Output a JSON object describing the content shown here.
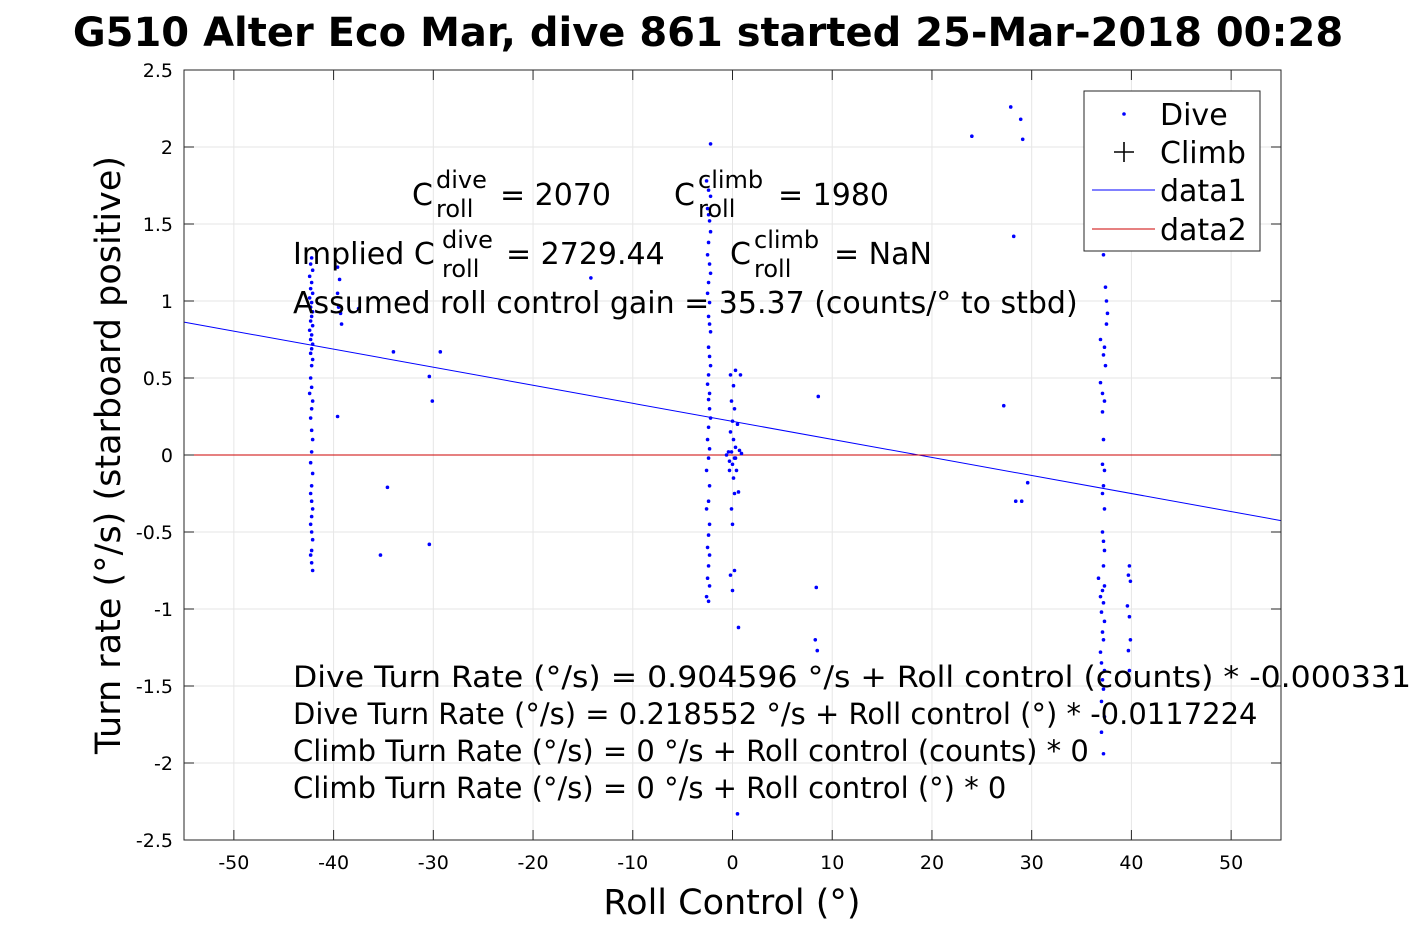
{
  "chart_data": {
    "type": "scatter",
    "title": "G510 Alter Eco Mar, dive 861 started 25-Mar-2018 00:28",
    "xlabel": "Roll Control (°)",
    "ylabel": "Turn rate (°/s) (starboard positive)",
    "xlim": [
      -55,
      55
    ],
    "ylim": [
      -2.5,
      2.5
    ],
    "x_ticks": [
      -50,
      -40,
      -30,
      -20,
      -10,
      0,
      10,
      20,
      30,
      40,
      50
    ],
    "x_tick_labels": [
      "-50",
      "-40",
      "-30",
      "-20",
      "-10",
      "0",
      "10",
      "20",
      "30",
      "40",
      "50"
    ],
    "y_ticks": [
      2.5,
      2,
      1.5,
      1,
      0.5,
      0,
      -0.5,
      -1,
      -1.5,
      -2,
      -2.5
    ],
    "y_tick_labels": [
      "2.5",
      "2",
      "1.5",
      "1",
      "0.5",
      "0",
      "-0.5",
      "-1",
      "-1.5",
      "-2",
      "-2.5"
    ],
    "grid": true,
    "legend_position": "top-right",
    "legend": [
      {
        "label": "Dive",
        "marker": "dot",
        "color": "#0000ff"
      },
      {
        "label": "Climb",
        "marker": "plus",
        "color": "#000000"
      },
      {
        "label": "data1",
        "marker": "line",
        "color": "#0000ff"
      },
      {
        "label": "data2",
        "marker": "line",
        "color": "#ff0000"
      }
    ],
    "series": [
      {
        "name": "Dive",
        "color": "#0000ff",
        "points": [
          [
            -42.2,
            1.28
          ],
          [
            -42.3,
            1.24
          ],
          [
            -42.1,
            1.2
          ],
          [
            -42.4,
            1.16
          ],
          [
            -42.2,
            1.12
          ],
          [
            -42.3,
            1.08
          ],
          [
            -42.1,
            1.05
          ],
          [
            -42.4,
            1.02
          ],
          [
            -42.2,
            0.99
          ],
          [
            -42.3,
            0.96
          ],
          [
            -42.1,
            0.93
          ],
          [
            -42.2,
            0.9
          ],
          [
            -42.3,
            0.87
          ],
          [
            -42.1,
            0.84
          ],
          [
            -42.4,
            0.81
          ],
          [
            -42.2,
            0.78
          ],
          [
            -42.3,
            0.75
          ],
          [
            -42.1,
            0.72
          ],
          [
            -42.2,
            0.69
          ],
          [
            -42.3,
            0.66
          ],
          [
            -42.1,
            0.62
          ],
          [
            -42.2,
            0.58
          ],
          [
            -42.3,
            0.5
          ],
          [
            -42.2,
            0.44
          ],
          [
            -42.4,
            0.4
          ],
          [
            -42.1,
            0.35
          ],
          [
            -42.2,
            0.3
          ],
          [
            -42.3,
            0.24
          ],
          [
            -42.2,
            0.16
          ],
          [
            -42.1,
            0.1
          ],
          [
            -42.2,
            0.02
          ],
          [
            -42.3,
            -0.05
          ],
          [
            -42.1,
            -0.12
          ],
          [
            -42.2,
            -0.2
          ],
          [
            -42.3,
            -0.25
          ],
          [
            -42.2,
            -0.3
          ],
          [
            -42.1,
            -0.35
          ],
          [
            -42.2,
            -0.4
          ],
          [
            -42.3,
            -0.45
          ],
          [
            -42.2,
            -0.5
          ],
          [
            -42.1,
            -0.55
          ],
          [
            -42.2,
            -0.62
          ],
          [
            -42.3,
            -0.65
          ],
          [
            -42.2,
            -0.7
          ],
          [
            -42.1,
            -0.75
          ],
          [
            -39.6,
            1.22
          ],
          [
            -39.4,
            1.14
          ],
          [
            -39.6,
            1.05
          ],
          [
            -39.5,
            0.96
          ],
          [
            -39.3,
            0.92
          ],
          [
            -39.2,
            0.85
          ],
          [
            -39.6,
            0.25
          ],
          [
            -37.5,
            0.95
          ],
          [
            -34.6,
            -0.21
          ],
          [
            -34,
            0.67
          ],
          [
            -35.3,
            -0.65
          ],
          [
            -30.4,
            0.51
          ],
          [
            -30.1,
            0.35
          ],
          [
            -30.4,
            -0.58
          ],
          [
            -29.3,
            0.67
          ],
          [
            -14.2,
            1.15
          ],
          [
            -2.2,
            2.02
          ],
          [
            -2.6,
            1.78
          ],
          [
            -2.4,
            1.72
          ],
          [
            -2.2,
            1.68
          ],
          [
            -2.5,
            1.6
          ],
          [
            -2.4,
            1.56
          ],
          [
            -2.3,
            1.52
          ],
          [
            -2.2,
            1.45
          ],
          [
            -2.4,
            1.38
          ],
          [
            -2.5,
            1.3
          ],
          [
            -2.3,
            1.24
          ],
          [
            -2.2,
            1.18
          ],
          [
            -2.4,
            1.12
          ],
          [
            -2.5,
            1.05
          ],
          [
            -2.3,
            0.99
          ],
          [
            -2.4,
            0.9
          ],
          [
            -2.3,
            0.85
          ],
          [
            -2.2,
            0.8
          ],
          [
            -2.4,
            0.7
          ],
          [
            -2.3,
            0.64
          ],
          [
            -2.2,
            0.58
          ],
          [
            -2.4,
            0.52
          ],
          [
            -2.5,
            0.46
          ],
          [
            -2.3,
            0.4
          ],
          [
            -2.4,
            0.36
          ],
          [
            -2.3,
            0.3
          ],
          [
            -2.2,
            0.24
          ],
          [
            -2.4,
            0.18
          ],
          [
            -2.5,
            0.1
          ],
          [
            -2.3,
            0.04
          ],
          [
            -2.4,
            -0.02
          ],
          [
            -2.6,
            -0.1
          ],
          [
            -2.3,
            -0.2
          ],
          [
            -2.4,
            -0.3
          ],
          [
            -2.6,
            -0.35
          ],
          [
            -2.3,
            -0.45
          ],
          [
            -2.4,
            -0.52
          ],
          [
            -2.5,
            -0.6
          ],
          [
            -2.3,
            -0.65
          ],
          [
            -2.4,
            -0.72
          ],
          [
            -2.5,
            -0.8
          ],
          [
            -2.3,
            -0.85
          ],
          [
            -2.6,
            -0.92
          ],
          [
            -2.4,
            -0.95
          ],
          [
            -0.2,
            0.52
          ],
          [
            0.3,
            0.55
          ],
          [
            0.1,
            0.45
          ],
          [
            -0.1,
            0.35
          ],
          [
            0.2,
            0.3
          ],
          [
            0,
            0.22
          ],
          [
            -0.2,
            0.15
          ],
          [
            0.1,
            0.1
          ],
          [
            0.3,
            0.05
          ],
          [
            -0.1,
            0.02
          ],
          [
            0.2,
            -0.02
          ],
          [
            0,
            -0.06
          ],
          [
            -0.3,
            -0.1
          ],
          [
            0.1,
            -0.15
          ],
          [
            0.2,
            -0.25
          ],
          [
            -0.1,
            -0.35
          ],
          [
            0,
            -0.45
          ],
          [
            0.2,
            -0.75
          ],
          [
            -0.2,
            -0.78
          ],
          [
            0,
            -0.88
          ],
          [
            0.6,
            -1.12
          ],
          [
            0.5,
            -2.33
          ],
          [
            0.8,
            0.52
          ],
          [
            0.6,
            -0.24
          ],
          [
            0.4,
            -0.1
          ],
          [
            0.5,
            0.2
          ],
          [
            0.7,
            0.03
          ],
          [
            0.3,
            -0.02
          ],
          [
            -0.4,
            0.02
          ],
          [
            -0.6,
            0
          ],
          [
            0.9,
            0.01
          ],
          [
            -0.3,
            -0.04
          ],
          [
            8.6,
            0.38
          ],
          [
            8.4,
            -0.86
          ],
          [
            8.3,
            -1.2
          ],
          [
            8.5,
            -1.27
          ],
          [
            24,
            2.07
          ],
          [
            27.2,
            0.32
          ],
          [
            27.9,
            2.26
          ],
          [
            28.2,
            1.42
          ],
          [
            28.4,
            -0.3
          ],
          [
            28.9,
            2.18
          ],
          [
            29.1,
            2.05
          ],
          [
            29,
            -0.3
          ],
          [
            29.6,
            -0.18
          ],
          [
            37.1,
            1.35
          ],
          [
            37.2,
            1.3
          ],
          [
            37.4,
            1.09
          ],
          [
            37.5,
            1.0
          ],
          [
            37.6,
            0.92
          ],
          [
            37.5,
            0.85
          ],
          [
            36.9,
            0.75
          ],
          [
            37.3,
            0.7
          ],
          [
            37.2,
            0.65
          ],
          [
            37.4,
            0.58
          ],
          [
            36.9,
            0.47
          ],
          [
            37.1,
            0.4
          ],
          [
            37.3,
            0.35
          ],
          [
            37.1,
            0.28
          ],
          [
            37.2,
            0.1
          ],
          [
            37.1,
            -0.06
          ],
          [
            37.3,
            -0.1
          ],
          [
            37.2,
            -0.2
          ],
          [
            37.1,
            -0.25
          ],
          [
            37.3,
            -0.35
          ],
          [
            37.1,
            -0.5
          ],
          [
            37.2,
            -0.56
          ],
          [
            37.3,
            -0.62
          ],
          [
            37.2,
            -0.72
          ],
          [
            36.7,
            -0.8
          ],
          [
            37.3,
            -0.85
          ],
          [
            37.1,
            -0.88
          ],
          [
            36.9,
            -0.92
          ],
          [
            37.2,
            -0.96
          ],
          [
            37,
            -1.02
          ],
          [
            37.3,
            -1.08
          ],
          [
            37.1,
            -1.15
          ],
          [
            37.2,
            -1.2
          ],
          [
            36.9,
            -1.28
          ],
          [
            37,
            -1.35
          ],
          [
            37.3,
            -1.4
          ],
          [
            37.1,
            -1.46
          ],
          [
            37.2,
            -1.52
          ],
          [
            37,
            -1.6
          ],
          [
            37.3,
            -1.7
          ],
          [
            37,
            -1.8
          ],
          [
            37.2,
            -1.94
          ],
          [
            39.8,
            -0.72
          ],
          [
            39.7,
            -0.78
          ],
          [
            39.9,
            -0.82
          ],
          [
            39.6,
            -0.98
          ],
          [
            39.8,
            -1.05
          ],
          [
            39.9,
            -1.2
          ],
          [
            39.7,
            -1.27
          ],
          [
            39.8,
            -1.4
          ]
        ]
      },
      {
        "name": "Climb",
        "color": "#000000",
        "points": []
      },
      {
        "name": "data1",
        "color": "#0000ff",
        "line": [
          [
            -55,
            0.863
          ],
          [
            55,
            -0.426
          ]
        ]
      },
      {
        "name": "data2",
        "color": "#ff0000",
        "line": [
          [
            -55,
            0
          ],
          [
            55,
            0
          ]
        ]
      }
    ],
    "annotations": {
      "c_dive": {
        "C": "C",
        "sup": "dive",
        "sub": "roll",
        "value": "= 2070"
      },
      "c_climb": {
        "C": "C",
        "sup": "climb",
        "sub": "roll",
        "value": "= 1980"
      },
      "implied_dive": {
        "prefix": "Implied C",
        "sup": "dive",
        "sub": "roll",
        "value": "= 2729.44"
      },
      "implied_climb": {
        "C": "C",
        "sup": "climb",
        "sub": "roll",
        "value": "= NaN"
      },
      "gain_line": "Assumed roll control gain = 35.37 (counts/° to stbd)",
      "equations": [
        "Dive Turn Rate (°/s) = 0.904596 °/s + Roll control (counts) * -0.000331",
        "Dive Turn Rate (°/s) = 0.218552 °/s + Roll control (°) * -0.0117224",
        "Climb Turn Rate (°/s) = 0 °/s + Roll control (counts) * 0",
        "Climb Turn Rate (°/s) = 0 °/s + Roll control (°) * 0"
      ]
    }
  }
}
